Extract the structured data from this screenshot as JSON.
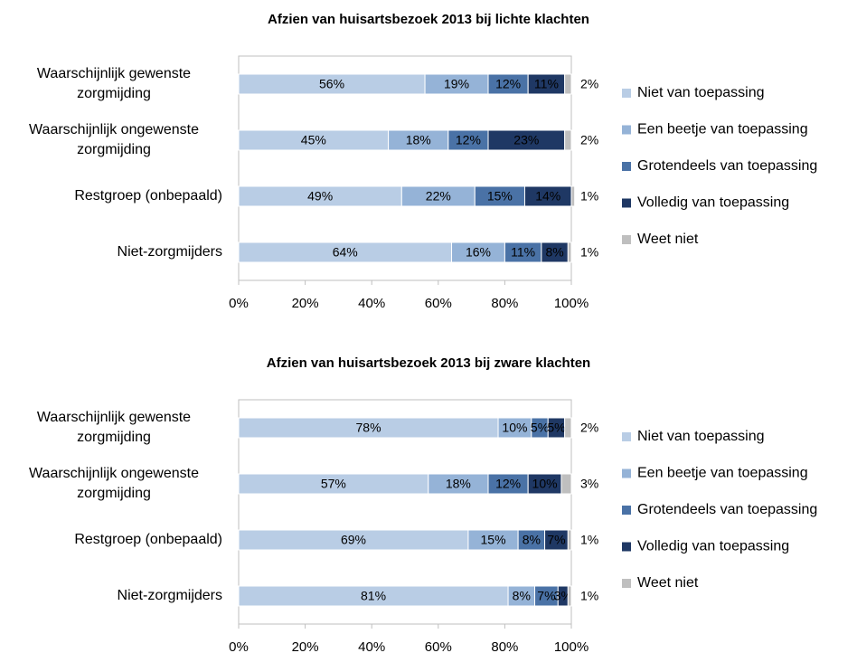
{
  "chart_data": [
    {
      "type": "bar",
      "orientation": "horizontal",
      "stacked": true,
      "title": "Afzien van huisartsbezoek 2013 bij lichte klachten",
      "categories": [
        "Waarschijnlijk gewenste zorgmijding",
        "Waarschijnlijk ongewenste zorgmijding",
        "Restgroep (onbepaald)",
        "Niet-zorgmijders"
      ],
      "series": [
        {
          "name": "Niet van toepassing",
          "color": "#b9cde5",
          "values": [
            56,
            45,
            49,
            64
          ],
          "value_labels": [
            "56%",
            "45%",
            "49%",
            "64%"
          ]
        },
        {
          "name": "Een beetje van toepassing",
          "color": "#95b3d7",
          "values": [
            19,
            18,
            22,
            16
          ],
          "value_labels": [
            "19%",
            "18%",
            "22%",
            "16%"
          ]
        },
        {
          "name": "Grotendeels van toepassing",
          "color": "#4a72a6",
          "values": [
            12,
            12,
            15,
            11
          ],
          "value_labels": [
            "12%",
            "12%",
            "15%",
            "11%"
          ]
        },
        {
          "name": "Volledig van toepassing",
          "color": "#1f3864",
          "values": [
            11,
            23,
            14,
            8
          ],
          "value_labels": [
            "11%",
            "23%",
            "14%",
            "8%"
          ]
        },
        {
          "name": "Weet niet",
          "color": "#bfbfbf",
          "values": [
            2,
            2,
            1,
            1
          ],
          "value_labels": [
            "2%",
            "2%",
            "1%",
            "1%"
          ]
        }
      ],
      "xlim": [
        0,
        100
      ],
      "xticks": [
        {
          "value": 0,
          "label": "0%"
        },
        {
          "value": 20,
          "label": "20%"
        },
        {
          "value": 40,
          "label": "40%"
        },
        {
          "value": 60,
          "label": "60%"
        },
        {
          "value": 80,
          "label": "80%"
        },
        {
          "value": 100,
          "label": "100%"
        }
      ],
      "legend": "right"
    },
    {
      "type": "bar",
      "orientation": "horizontal",
      "stacked": true,
      "title": "Afzien van huisartsbezoek 2013 bij zware klachten",
      "categories": [
        "Waarschijnlijk gewenste zorgmijding",
        "Waarschijnlijk ongewenste zorgmijding",
        "Restgroep (onbepaald)",
        "Niet-zorgmijders"
      ],
      "series": [
        {
          "name": "Niet van toepassing",
          "color": "#b9cde5",
          "values": [
            78,
            57,
            69,
            81
          ],
          "value_labels": [
            "78%",
            "57%",
            "69%",
            "81%"
          ]
        },
        {
          "name": "Een beetje van toepassing",
          "color": "#95b3d7",
          "values": [
            10,
            18,
            15,
            8
          ],
          "value_labels": [
            "10%",
            "18%",
            "15%",
            "8%"
          ]
        },
        {
          "name": "Grotendeels van toepassing",
          "color": "#4a72a6",
          "values": [
            5,
            12,
            8,
            7
          ],
          "value_labels": [
            "5%",
            "12%",
            "8%",
            "7%"
          ]
        },
        {
          "name": "Volledig van toepassing",
          "color": "#1f3864",
          "values": [
            5,
            10,
            7,
            3
          ],
          "value_labels": [
            "5%",
            "10%",
            "7%",
            "3%"
          ]
        },
        {
          "name": "Weet niet",
          "color": "#bfbfbf",
          "values": [
            2,
            3,
            1,
            1
          ],
          "value_labels": [
            "2%",
            "3%",
            "1%",
            "1%"
          ]
        }
      ],
      "xlim": [
        0,
        100
      ],
      "xticks": [
        {
          "value": 0,
          "label": "0%"
        },
        {
          "value": 20,
          "label": "20%"
        },
        {
          "value": 40,
          "label": "40%"
        },
        {
          "value": 60,
          "label": "60%"
        },
        {
          "value": 80,
          "label": "80%"
        },
        {
          "value": 100,
          "label": "100%"
        }
      ],
      "legend": "right"
    }
  ]
}
